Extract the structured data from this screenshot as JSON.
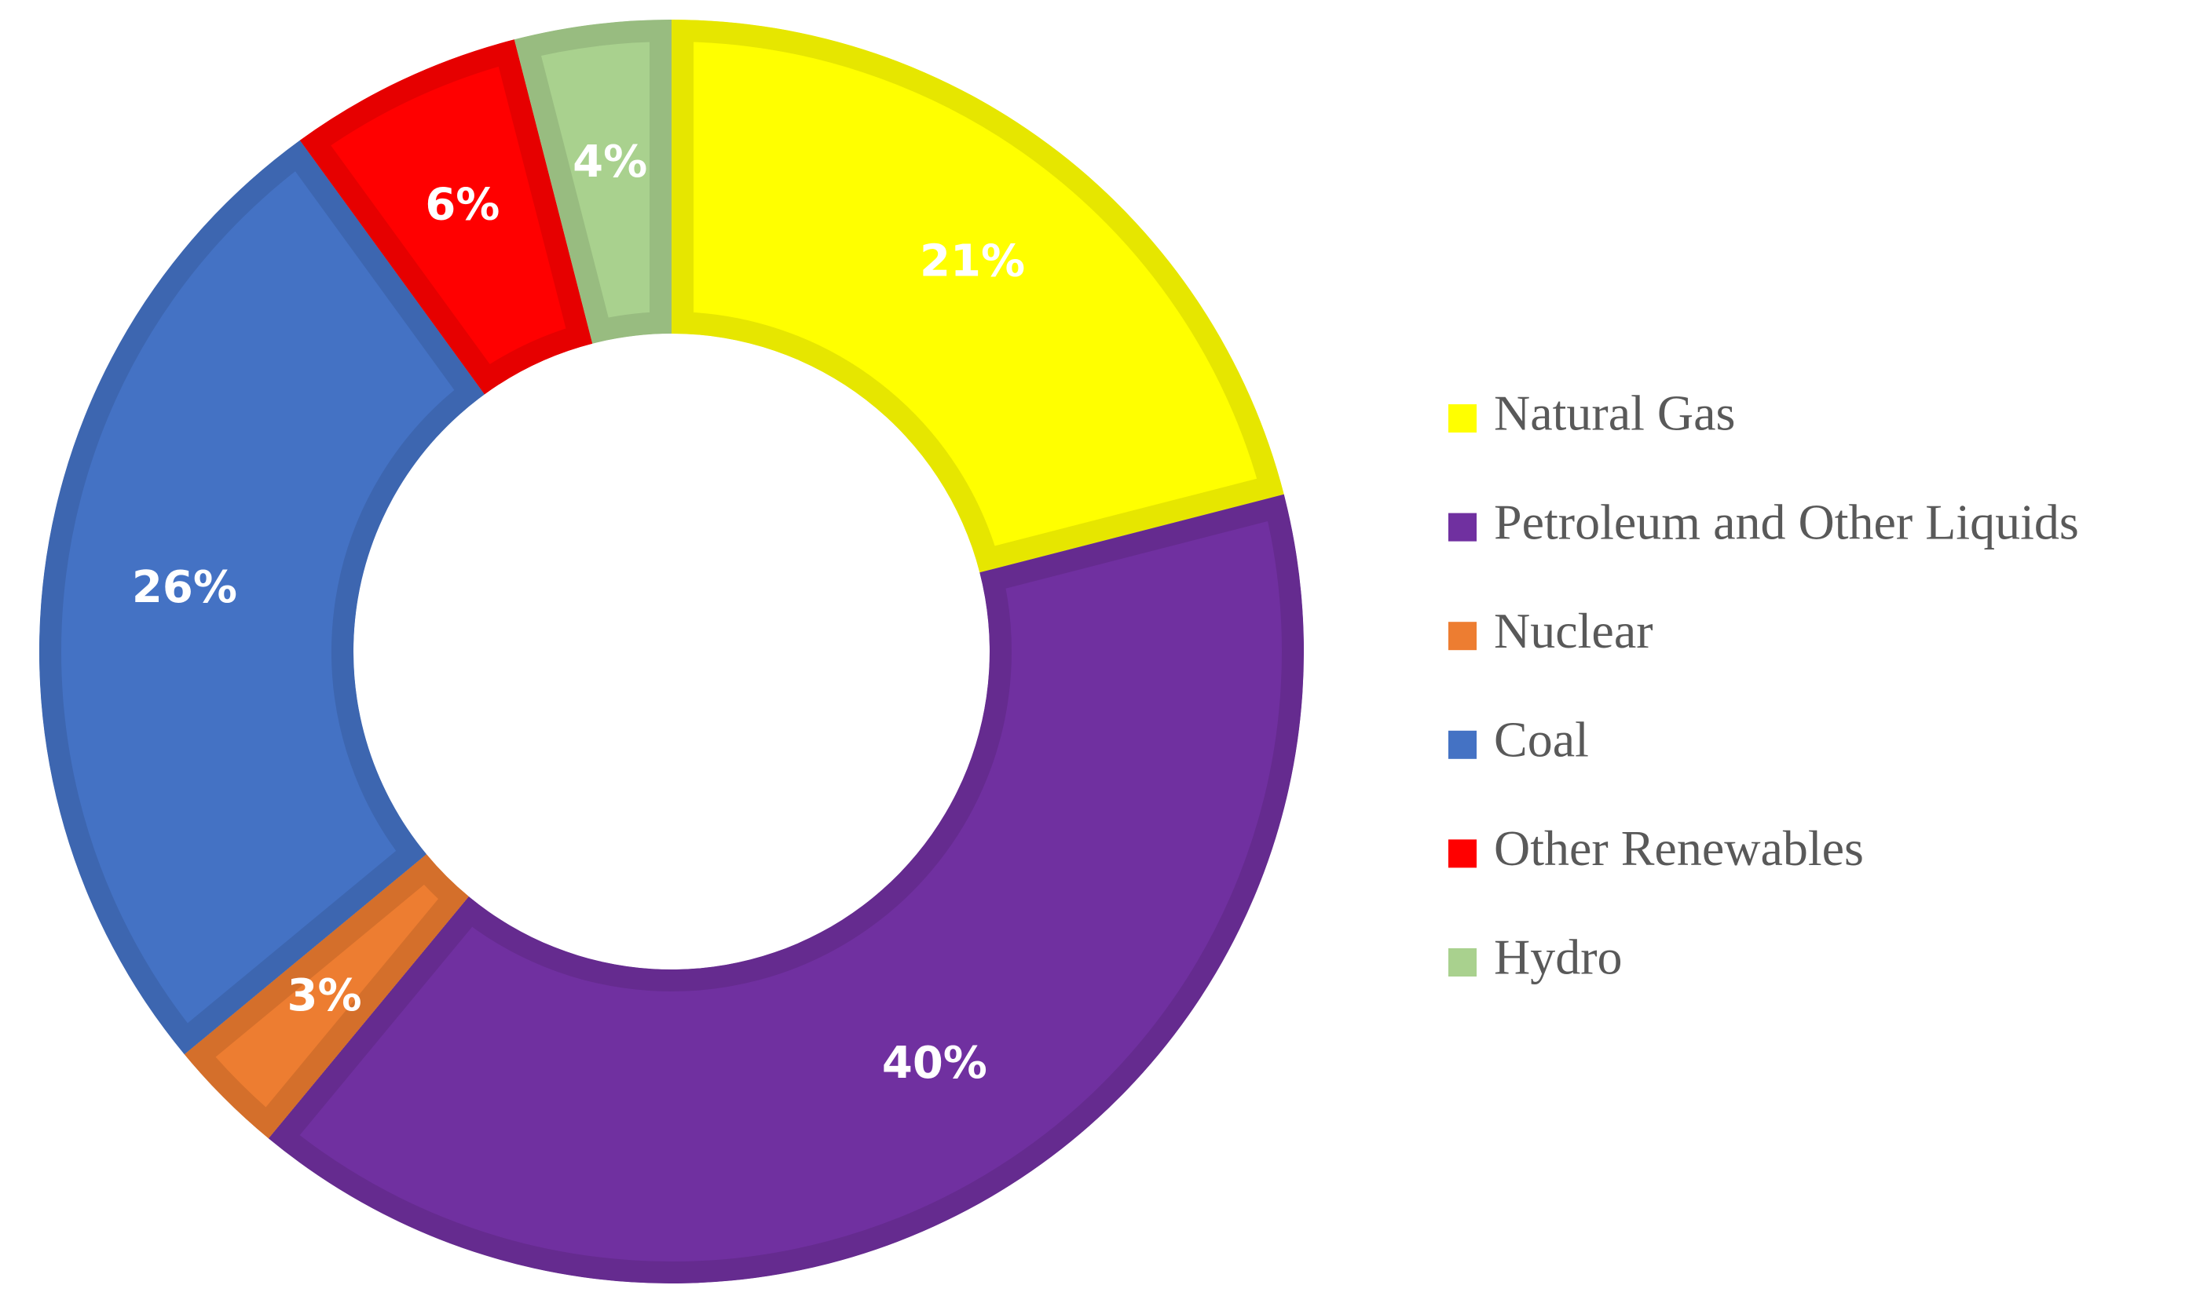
{
  "chart_data": {
    "type": "donut",
    "categories": [
      "Natural Gas",
      "Petroleum and Other Liquids",
      "Nuclear",
      "Coal",
      "Other Renewables",
      "Hydro"
    ],
    "values": [
      21,
      40,
      3,
      26,
      6,
      4
    ],
    "value_labels": [
      "21%",
      "40%",
      "3%",
      "26%",
      "6%",
      "4%"
    ],
    "colors": [
      "#ffff00",
      "#7030a0",
      "#ed7d31",
      "#4472c4",
      "#ff0000",
      "#a9d18e"
    ],
    "border_colors": [
      "#e6e600",
      "#652b8f",
      "#d46f2b",
      "#3d66b0",
      "#e60000",
      "#98bc80"
    ],
    "legend": "right"
  }
}
